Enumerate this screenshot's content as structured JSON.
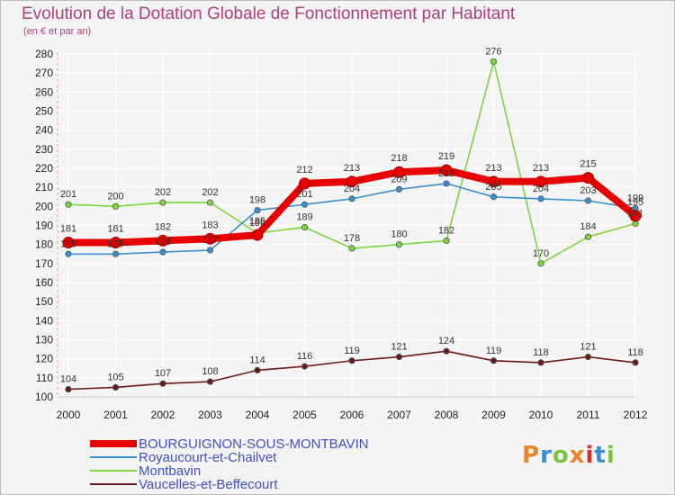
{
  "title": "Evolution de la Dotation Globale de Fonctionnement par Habitant",
  "subtitle": "(en € et par an)",
  "logo": {
    "text": "Proxiti",
    "colors": [
      "#e8842a",
      "#3a8fd0",
      "#7cc242",
      "#e8842a",
      "#d62e2e",
      "#3a8fd0",
      "#7cc242"
    ]
  },
  "chart_data": {
    "type": "line",
    "title": "Evolution de la Dotation Globale de Fonctionnement par Habitant",
    "subtitle": "(en € et par an)",
    "xlabel": "",
    "ylabel": "",
    "x": [
      2000,
      2001,
      2002,
      2003,
      2004,
      2005,
      2006,
      2007,
      2008,
      2009,
      2010,
      2011,
      2012
    ],
    "y_ticks": [
      100,
      110,
      120,
      130,
      140,
      150,
      160,
      170,
      180,
      190,
      200,
      210,
      220,
      230,
      240,
      250,
      260,
      270,
      280
    ],
    "ylim": [
      100,
      280
    ],
    "grid": true,
    "legend_position": "bottom-left",
    "series": [
      {
        "name": "BOURGUIGNON-SOUS-MONTBAVIN",
        "color": "#e80000",
        "emphasis": true,
        "values": [
          181,
          181,
          182,
          183,
          185,
          212,
          213,
          218,
          219,
          213,
          213,
          215,
          195
        ],
        "labels": [
          "181",
          "181",
          "182",
          "183",
          "185",
          "212",
          "213",
          "218",
          "219",
          "213",
          "213",
          "215",
          "195"
        ],
        "label_pos": [
          "above",
          "above",
          "above",
          "above",
          "above",
          "above",
          "above",
          "above",
          "above",
          "above",
          "above",
          "above",
          "above"
        ]
      },
      {
        "name": "Royaucourt-et-Chailvet",
        "color": "#3a8fd0",
        "values": [
          175,
          175,
          176,
          177,
          198,
          201,
          204,
          209,
          212,
          205,
          204,
          203,
          199
        ],
        "labels": [
          "175",
          "175",
          "176",
          "177",
          "198",
          "201",
          "204",
          "209",
          "212",
          "205",
          "204",
          "203",
          "199"
        ],
        "label_pos": [
          "above",
          "above",
          "above",
          "above",
          "above",
          "above",
          "above",
          "above",
          "above",
          "above",
          "above",
          "above",
          "above"
        ]
      },
      {
        "name": "Montbavin",
        "color": "#7cd63c",
        "values": [
          201,
          200,
          202,
          202,
          186,
          189,
          178,
          180,
          182,
          276,
          170,
          184,
          191
        ],
        "labels": [
          "201",
          "200",
          "202",
          "202",
          "186",
          "189",
          "178",
          "180",
          "182",
          "276",
          "170",
          "184",
          "191"
        ],
        "label_pos": [
          "above",
          "above",
          "above",
          "above",
          "above",
          "above",
          "above",
          "above",
          "above",
          "above",
          "above",
          "above",
          "above"
        ]
      },
      {
        "name": "Vaucelles-et-Beffecourt",
        "color": "#6b1a1a",
        "values": [
          104,
          105,
          107,
          108,
          114,
          116,
          119,
          121,
          124,
          119,
          118,
          121,
          118
        ],
        "labels": [
          "104",
          "105",
          "107",
          "108",
          "114",
          "116",
          "119",
          "121",
          "124",
          "119",
          "118",
          "121",
          "118"
        ],
        "label_pos": [
          "above",
          "above",
          "above",
          "above",
          "above",
          "above",
          "above",
          "above",
          "above",
          "above",
          "above",
          "above",
          "above"
        ]
      }
    ]
  }
}
